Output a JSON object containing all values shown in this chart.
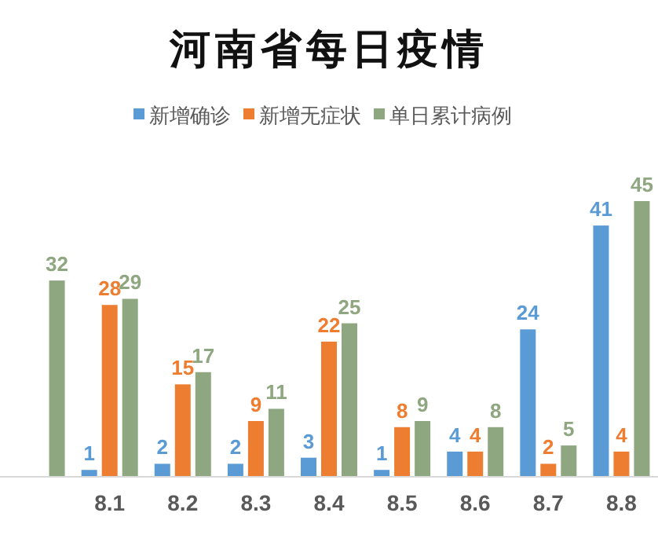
{
  "chart_data": {
    "type": "bar",
    "title": "河南省每日疫情",
    "categories": [
      null,
      "8.1",
      "8.2",
      "8.3",
      "8.4",
      "8.5",
      "8.6",
      "8.7",
      "8.8"
    ],
    "series": [
      {
        "name": "新增确诊",
        "color": "#5b9bd5",
        "values": [
          null,
          1,
          2,
          2,
          3,
          1,
          4,
          24,
          41
        ]
      },
      {
        "name": "新增无症状",
        "color": "#ed7d31",
        "values": [
          null,
          28,
          15,
          9,
          22,
          8,
          4,
          2,
          4
        ]
      },
      {
        "name": "单日累计病例",
        "color": "#8fa781",
        "values": [
          32,
          29,
          17,
          11,
          25,
          9,
          8,
          5,
          45
        ]
      }
    ],
    "data_labels": true,
    "legend": "top"
  }
}
